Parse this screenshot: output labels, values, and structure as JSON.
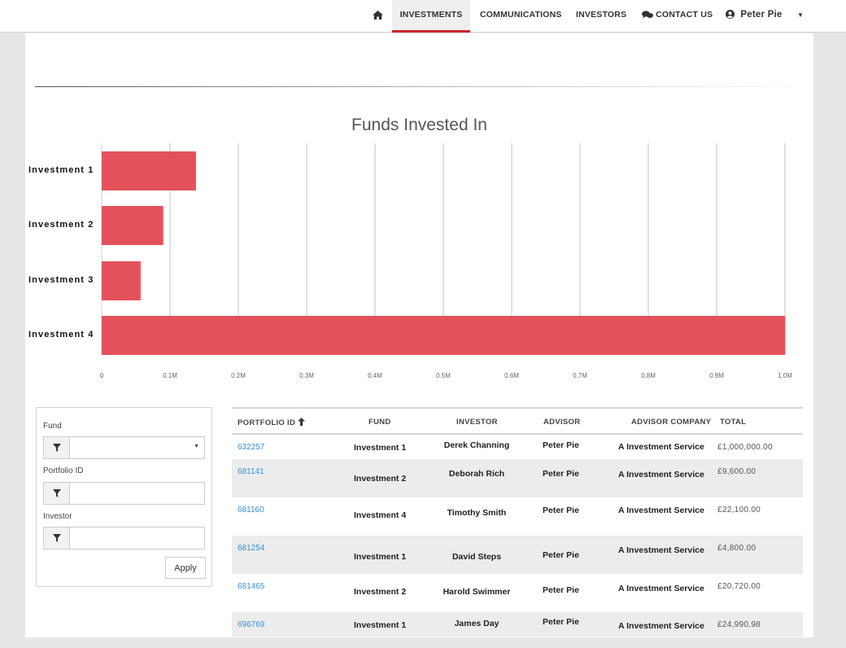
{
  "nav": {
    "home_icon": "home-icon",
    "investments": "INVESTMENTS",
    "communications": "COMMUNICATIONS",
    "investors": "INVESTORS",
    "contact_us": "CONTACT US",
    "contact_icon": "chat-bubbles-icon",
    "user_name": "Peter Pie",
    "user_icon": "user-circle-icon",
    "caret": "▼"
  },
  "colors": {
    "accent": "#c8272d",
    "bar": "#e3525a",
    "link": "#3a8fd6"
  },
  "chart_data": {
    "type": "bar",
    "orientation": "horizontal",
    "title": "Funds Invested In",
    "categories": [
      "Investment 1",
      "Investment 2",
      "Investment 3",
      "Investment 4"
    ],
    "values": [
      138000,
      90000,
      57000,
      1000000
    ],
    "xlim": [
      0,
      1000000
    ],
    "x_ticks": [
      0,
      100000,
      200000,
      300000,
      400000,
      500000,
      600000,
      700000,
      800000,
      900000,
      1000000
    ],
    "x_tick_labels": [
      "0",
      "0.1M",
      "0.2M",
      "0.3M",
      "0.4M",
      "0.5M",
      "0.6M",
      "0.7M",
      "0.8M",
      "0.9M",
      "1.0M"
    ],
    "grid": true,
    "legend": "none"
  },
  "filters": {
    "fund_label": "Fund",
    "fund_value": "",
    "portfolio_label": "Portfolio ID",
    "portfolio_value": "",
    "investor_label": "Investor",
    "investor_value": "",
    "filter_icon": "funnel-icon",
    "apply": "Apply"
  },
  "table": {
    "headers": {
      "portfolio_id": "PORTFOLIO ID",
      "sort_icon": "arrow-up-icon",
      "fund": "FUND",
      "investor": "INVESTOR",
      "advisor": "ADVISOR",
      "advisor_company": "ADVISOR COMPANY",
      "total": "TOTAL"
    },
    "rows": [
      {
        "portfolio_id": "632257",
        "fund": "Investment 1",
        "investor": "Derek Channing",
        "advisor": "Peter Pie",
        "advisor_company": "A Investment Service",
        "total": "£1,000,000.00"
      },
      {
        "portfolio_id": "681141",
        "fund": "Investment 2",
        "investor": "Deborah Rich",
        "advisor": "Peter Pie",
        "advisor_company": "A Investment Service",
        "total": "£9,600.00"
      },
      {
        "portfolio_id": "681160",
        "fund": "Investment 4",
        "investor": "Timothy Smith",
        "advisor": "Peter Pie",
        "advisor_company": "A Investment Service",
        "total": "£22,100.00"
      },
      {
        "portfolio_id": "681254",
        "fund": "Investment 1",
        "investor": "David Steps",
        "advisor": "Peter Pie",
        "advisor_company": "A Investment Service",
        "total": "£4,800.00"
      },
      {
        "portfolio_id": "681465",
        "fund": "Investment 2",
        "investor": "Harold Swimmer",
        "advisor": "Peter Pie",
        "advisor_company": "A Investment Service",
        "total": "£20,720.00"
      },
      {
        "portfolio_id": "696769",
        "fund": "Investment 1",
        "investor": "James Day",
        "advisor": "Peter Pie",
        "advisor_company": "A Investment Service",
        "total": "£24,990.98"
      }
    ]
  }
}
